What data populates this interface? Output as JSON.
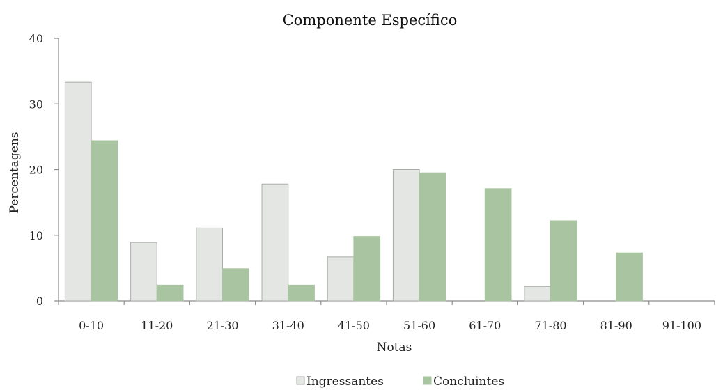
{
  "chart_data": {
    "type": "bar",
    "title": "Componente Específico",
    "xlabel": "Notas",
    "ylabel": "Percentagens",
    "categories": [
      "0-10",
      "11-20",
      "21-30",
      "31-40",
      "41-50",
      "51-60",
      "61-70",
      "71-80",
      "81-90",
      "91-100"
    ],
    "series": [
      {
        "name": "Ingressantes",
        "color": "#e3e6e3",
        "stroke": "#a9aca9",
        "values": [
          33.3,
          8.9,
          11.1,
          17.8,
          6.7,
          20.0,
          0,
          2.2,
          0,
          0
        ]
      },
      {
        "name": "Concluintes",
        "color": "#a9c4a1",
        "stroke": "#a9c4a1",
        "values": [
          24.4,
          2.4,
          4.9,
          2.4,
          9.8,
          19.5,
          17.1,
          12.2,
          7.3,
          0
        ]
      }
    ],
    "ylim": [
      0,
      40
    ],
    "yticks": [
      0,
      10,
      20,
      30,
      40
    ],
    "grid": false,
    "legend_position": "bottom"
  }
}
